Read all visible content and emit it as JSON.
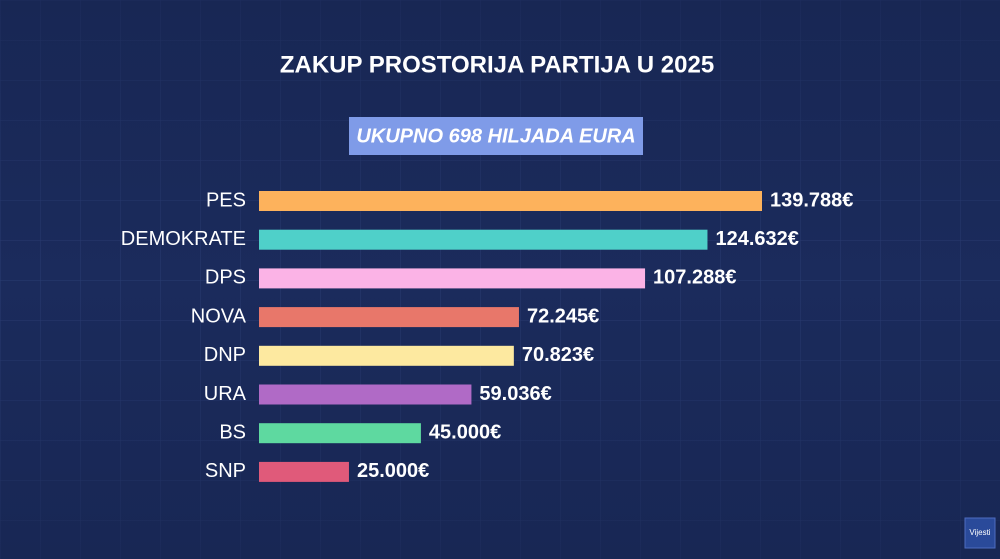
{
  "chart_data": {
    "type": "bar",
    "orientation": "horizontal",
    "title": "ZAKUP PROSTORIJA PARTIJA U 2025",
    "subtitle": "UKUPNO 698 HILJADA EURA",
    "categories": [
      "PES",
      "DEMOKRATE",
      "DPS",
      "NOVA",
      "DNP",
      "URA",
      "BS",
      "SNP"
    ],
    "values": [
      139788,
      124632,
      107288,
      72245,
      70823,
      59036,
      45000,
      25000
    ],
    "value_labels": [
      "139.788€",
      "124.632€",
      "107.288€",
      "72.245€",
      "70.823€",
      "59.036€",
      "45.000€",
      "25.000€"
    ],
    "colors": [
      "#fdb25c",
      "#4fd0c9",
      "#fbb3e6",
      "#e8776a",
      "#fde9a0",
      "#b06ac6",
      "#5ed9a0",
      "#e05a7a"
    ],
    "watermark": "Vijesti"
  }
}
